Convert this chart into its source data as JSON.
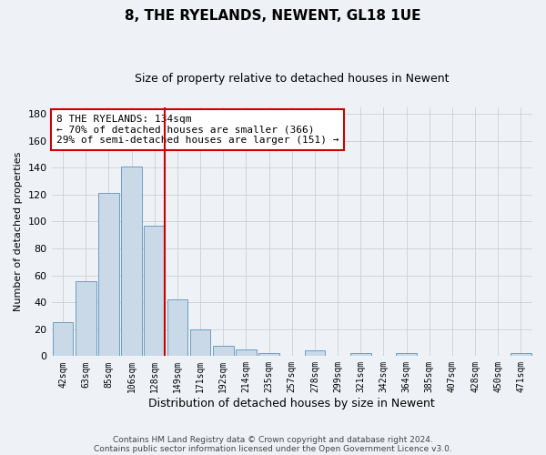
{
  "title1": "8, THE RYELANDS, NEWENT, GL18 1UE",
  "title2": "Size of property relative to detached houses in Newent",
  "xlabel": "Distribution of detached houses by size in Newent",
  "ylabel": "Number of detached properties",
  "categories": [
    "42sqm",
    "63sqm",
    "85sqm",
    "106sqm",
    "128sqm",
    "149sqm",
    "171sqm",
    "192sqm",
    "214sqm",
    "235sqm",
    "257sqm",
    "278sqm",
    "299sqm",
    "321sqm",
    "342sqm",
    "364sqm",
    "385sqm",
    "407sqm",
    "428sqm",
    "450sqm",
    "471sqm"
  ],
  "values": [
    25,
    56,
    121,
    141,
    97,
    42,
    20,
    8,
    5,
    2,
    0,
    4,
    0,
    2,
    0,
    2,
    0,
    0,
    0,
    0,
    2
  ],
  "bar_color": "#c9d9e8",
  "bar_edge_color": "#6a9ec0",
  "marker_bin_index": 4,
  "marker_color": "#cc0000",
  "annotation_line1": "8 THE RYELANDS: 134sqm",
  "annotation_line2": "← 70% of detached houses are smaller (366)",
  "annotation_line3": "29% of semi-detached houses are larger (151) →",
  "annotation_box_color": "#ffffff",
  "annotation_box_edge": "#cc0000",
  "ylim": [
    0,
    185
  ],
  "yticks": [
    0,
    20,
    40,
    60,
    80,
    100,
    120,
    140,
    160,
    180
  ],
  "footer1": "Contains HM Land Registry data © Crown copyright and database right 2024.",
  "footer2": "Contains public sector information licensed under the Open Government Licence v3.0.",
  "bg_color": "#eef2f7",
  "plot_bg_color": "#eef2f7",
  "grid_color": "#c8c8c8",
  "title1_fontsize": 11,
  "title2_fontsize": 9
}
